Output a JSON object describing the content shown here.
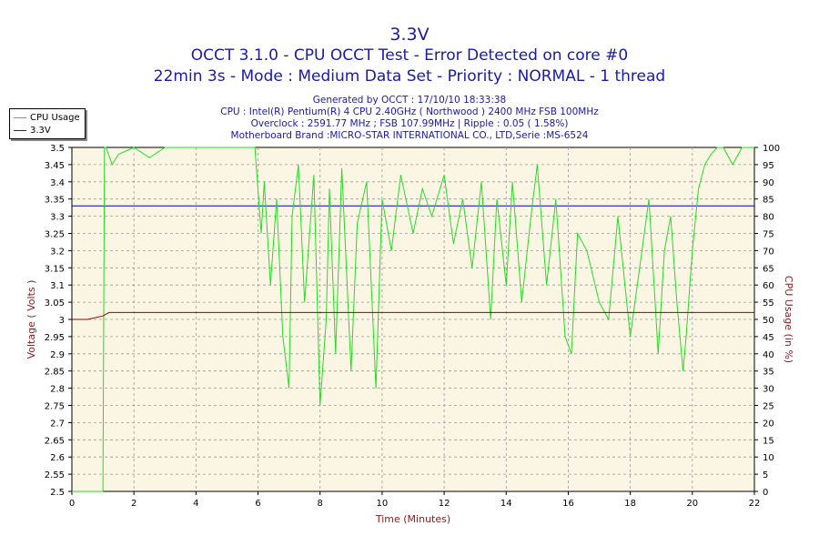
{
  "chart_data": {
    "type": "line",
    "title": "3.3V",
    "subtitle1": "OCCT 3.1.0 - CPU OCCT Test - Error Detected on core #0",
    "subtitle2": "22min 3s - Mode : Medium Data Set - Priority : NORMAL - 1 thread",
    "info": [
      "Generated by OCCT : 17/10/10 18:33:38",
      "CPU : Intel(R) Pentium(R) 4 CPU 2.40GHz ( Northwood ) 2400 MHz FSB 100MHz",
      "Overclock : 2591.77 MHz ; FSB 107.99MHz | Ripple : 0.05 ( 1.58%)",
      "Motherboard Brand :MICRO-STAR INTERNATIONAL CO., LTD,Serie :MS-6524"
    ],
    "xlabel": "Time (Minutes)",
    "ylabel_left": "Voltage ( Volts )",
    "ylabel_right": "CPU Usage (in %)",
    "xlim": [
      0,
      22
    ],
    "ylim_left": [
      2.5,
      3.5
    ],
    "ylim_right": [
      0,
      100
    ],
    "x_ticks": [
      0,
      2,
      4,
      6,
      8,
      10,
      12,
      14,
      16,
      18,
      20,
      22
    ],
    "y_left_ticks": [
      "2.5",
      "2.55",
      "2.6",
      "2.65",
      "2.7",
      "2.75",
      "2.8",
      "2.85",
      "2.9",
      "2.95",
      "3",
      "3.05",
      "3.1",
      "3.15",
      "3.2",
      "3.25",
      "3.3",
      "3.35",
      "3.4",
      "3.45",
      "3.5"
    ],
    "y_right_ticks": [
      "0",
      "5",
      "10",
      "15",
      "20",
      "25",
      "30",
      "35",
      "40",
      "45",
      "50",
      "55",
      "60",
      "65",
      "70",
      "75",
      "80",
      "85",
      "90",
      "95",
      "100"
    ],
    "reference_line": {
      "axis": "left",
      "value": 3.33,
      "color": "#0000cc"
    },
    "grid": true,
    "legend_position": "top-left",
    "series": [
      {
        "name": "CPU Usage",
        "axis": "right",
        "color": "#22dd22",
        "x": [
          0,
          1.0,
          1.05,
          1.1,
          1.3,
          1.5,
          2.0,
          2.5,
          3.0,
          3.5,
          4.0,
          4.5,
          5.0,
          5.5,
          5.9,
          6.1,
          6.2,
          6.4,
          6.6,
          6.8,
          7.0,
          7.1,
          7.3,
          7.5,
          7.8,
          8.0,
          8.2,
          8.3,
          8.5,
          8.7,
          9.0,
          9.2,
          9.5,
          9.8,
          10.0,
          10.3,
          10.6,
          11.0,
          11.3,
          11.6,
          12.0,
          12.3,
          12.6,
          12.9,
          13.2,
          13.5,
          13.7,
          14.0,
          14.2,
          14.5,
          14.8,
          15.0,
          15.3,
          15.6,
          15.9,
          16.1,
          16.3,
          16.6,
          17.0,
          17.3,
          17.6,
          18.0,
          18.3,
          18.6,
          18.9,
          19.1,
          19.3,
          19.5,
          19.7,
          19.8,
          20.0,
          20.2,
          20.4,
          20.6,
          20.8,
          21.0,
          21.3,
          21.6,
          22.0
        ],
        "values": [
          0,
          0,
          100,
          100,
          95,
          98,
          100,
          97,
          100,
          100,
          100,
          100,
          100,
          100,
          100,
          75,
          90,
          60,
          85,
          45,
          30,
          80,
          95,
          55,
          92,
          25,
          50,
          88,
          40,
          94,
          35,
          78,
          90,
          30,
          85,
          70,
          92,
          75,
          88,
          80,
          92,
          72,
          85,
          65,
          90,
          50,
          85,
          60,
          90,
          55,
          80,
          95,
          60,
          85,
          45,
          40,
          75,
          70,
          55,
          50,
          80,
          45,
          65,
          85,
          40,
          70,
          80,
          55,
          35,
          45,
          70,
          88,
          95,
          98,
          100,
          100,
          95,
          100,
          100
        ]
      },
      {
        "name": "3.3V",
        "axis": "left",
        "color": "#990000",
        "x": [
          0,
          0.5,
          1.0,
          1.2,
          1.5,
          2.0,
          3.0,
          4.0,
          5.0,
          6.0,
          7.0,
          8.0,
          9.0,
          10.0,
          11.0,
          12.0,
          13.0,
          14.0,
          15.0,
          16.0,
          17.0,
          18.0,
          19.0,
          20.0,
          21.0,
          22.0
        ],
        "values": [
          3.0,
          3.0,
          3.01,
          3.02,
          3.02,
          3.02,
          3.02,
          3.02,
          3.02,
          3.02,
          3.02,
          3.02,
          3.02,
          3.02,
          3.02,
          3.02,
          3.02,
          3.02,
          3.02,
          3.02,
          3.02,
          3.02,
          3.02,
          3.02,
          3.02,
          3.02
        ]
      }
    ]
  }
}
